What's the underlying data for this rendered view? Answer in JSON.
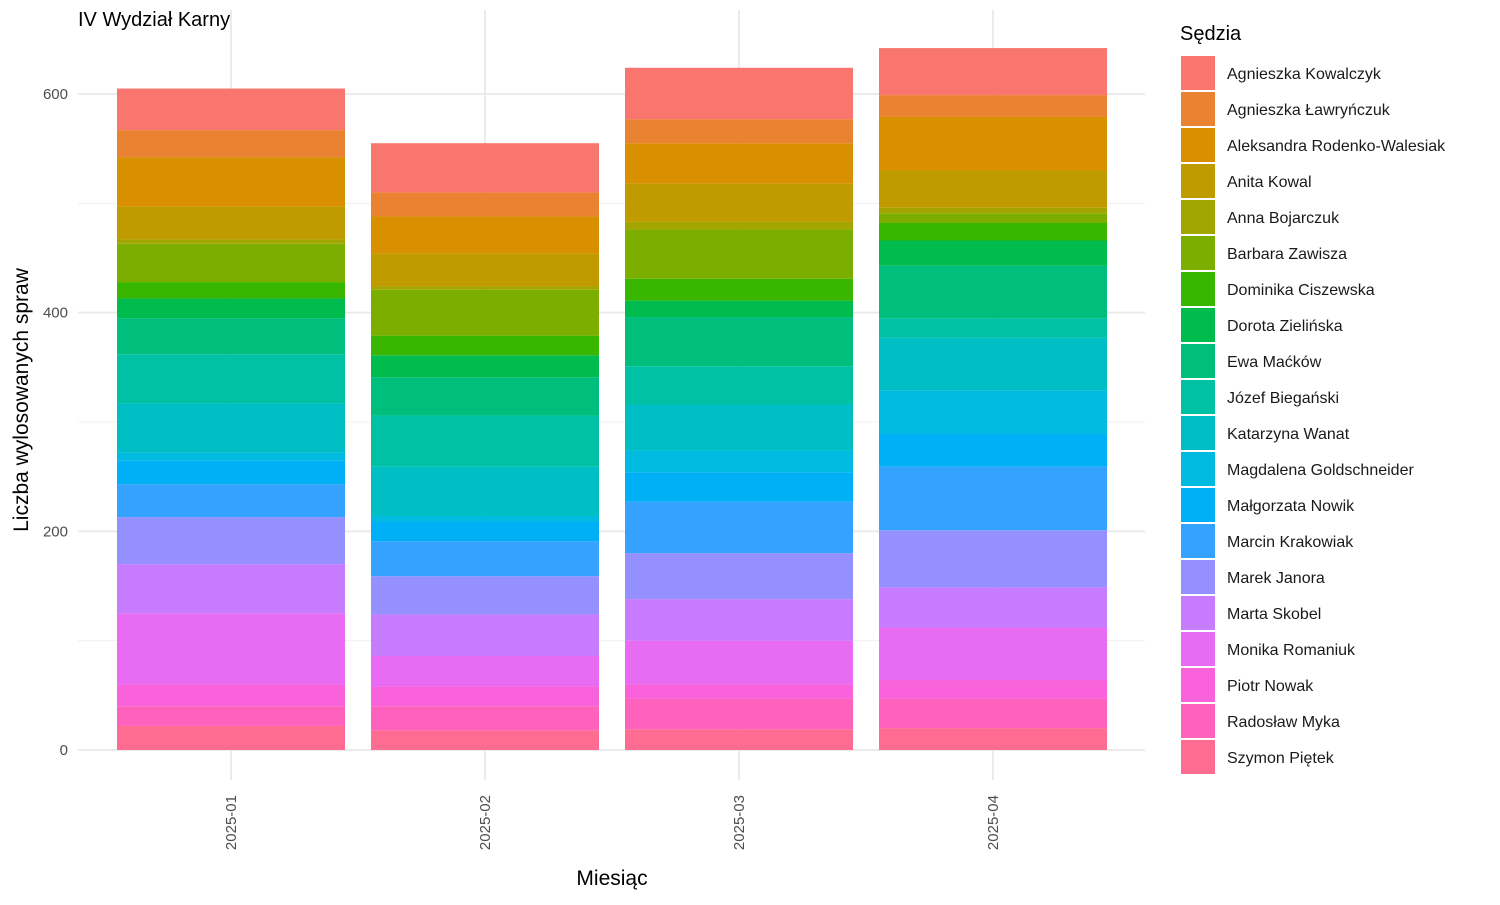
{
  "chart_data": {
    "type": "bar",
    "stacked": true,
    "title": "IV Wydział Karny",
    "xlabel": "Miesiąc",
    "ylabel": "Liczba wylosowanych spraw",
    "categories": [
      "2025-01",
      "2025-02",
      "2025-03",
      "2025-04"
    ],
    "ylim": [
      0,
      650
    ],
    "yticks": [
      0,
      200,
      400,
      600
    ],
    "grid": true,
    "legend": {
      "title": "Sędzia",
      "position": "right"
    },
    "series": [
      {
        "name": "Agnieszka Kowalczyk",
        "color": "#F8766D",
        "values": [
          38,
          45,
          47,
          43
        ]
      },
      {
        "name": "Agnieszka Ławryńczuk",
        "color": "#EA8331",
        "values": [
          25,
          22,
          22,
          20
        ]
      },
      {
        "name": "Aleksandra Rodenko-Walesiak",
        "color": "#D89000",
        "values": [
          45,
          34,
          37,
          49
        ]
      },
      {
        "name": "Anita Kowal",
        "color": "#C09B00",
        "values": [
          30,
          30,
          35,
          34
        ]
      },
      {
        "name": "Anna Bojarczuk",
        "color": "#A3A500",
        "values": [
          4,
          3,
          7,
          5
        ]
      },
      {
        "name": "Barbara Zawisza",
        "color": "#7CAE00",
        "values": [
          35,
          42,
          45,
          9
        ]
      },
      {
        "name": "Dominika Ciszewska",
        "color": "#39B600",
        "values": [
          15,
          18,
          20,
          16
        ]
      },
      {
        "name": "Dorota Zielińska",
        "color": "#00BB4E",
        "values": [
          18,
          20,
          15,
          23
        ]
      },
      {
        "name": "Ewa Maćków",
        "color": "#00BF7D",
        "values": [
          33,
          35,
          45,
          48
        ]
      },
      {
        "name": "Józef Biegański",
        "color": "#00C1A3",
        "values": [
          45,
          47,
          35,
          18
        ]
      },
      {
        "name": "Katarzyna Wanat",
        "color": "#00BFC4",
        "values": [
          45,
          45,
          42,
          48
        ]
      },
      {
        "name": "Magdalena Goldschneider",
        "color": "#00BAE0",
        "values": [
          7,
          5,
          20,
          40
        ]
      },
      {
        "name": "Małgorzata Nowik",
        "color": "#00B0F6",
        "values": [
          22,
          18,
          27,
          30
        ]
      },
      {
        "name": "Marcin Krakowiak",
        "color": "#35A2FF",
        "values": [
          30,
          32,
          47,
          58
        ]
      },
      {
        "name": "Marek Janora",
        "color": "#9590FF",
        "values": [
          43,
          35,
          42,
          52
        ]
      },
      {
        "name": "Marta Skobel",
        "color": "#C77CFF",
        "values": [
          45,
          38,
          38,
          37
        ]
      },
      {
        "name": "Monika Romaniuk",
        "color": "#E76BF3",
        "values": [
          65,
          28,
          40,
          48
        ]
      },
      {
        "name": "Piotr Nowak",
        "color": "#FA62DB",
        "values": [
          20,
          18,
          13,
          17
        ]
      },
      {
        "name": "Radosław Myka",
        "color": "#FF62BC",
        "values": [
          18,
          22,
          28,
          27
        ]
      },
      {
        "name": "Szymon Piętek",
        "color": "#FF6C91",
        "values": [
          22,
          18,
          19,
          20
        ]
      }
    ]
  }
}
